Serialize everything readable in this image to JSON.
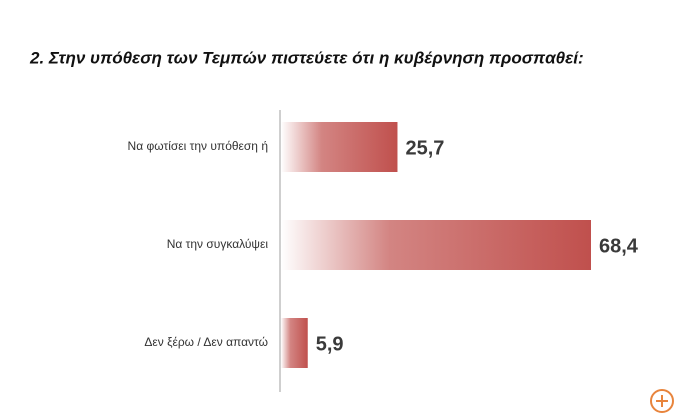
{
  "chart_data": {
    "type": "barh",
    "title": "2. Στην υπόθεση των Τεμπών πιστεύετε ότι η κυβέρνηση προσπαθεί:",
    "categories": [
      "Να φωτίσει την υπόθεση ή",
      "Να την συγκαλύψει",
      "Δεν ξέρω / Δεν απαντώ"
    ],
    "values": [
      25.7,
      68.4,
      5.9
    ],
    "value_labels": [
      "25,7",
      "68,4",
      "5,9"
    ],
    "color": "#c0504d"
  }
}
